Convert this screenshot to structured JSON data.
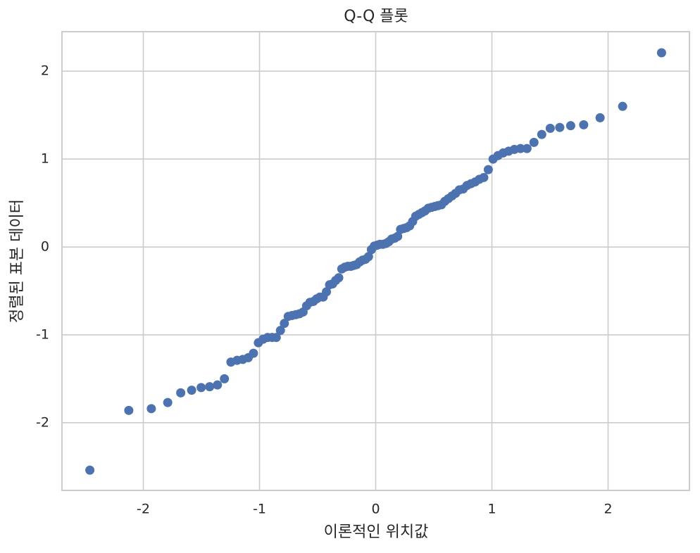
{
  "chart_data": {
    "type": "scatter",
    "title": "Q-Q 플롯",
    "x_label": "이론적인 위치값",
    "y_label": "정렬된 표본 데이터",
    "color": "#4c72b0",
    "grid": true,
    "xlim": [
      -2.7,
      2.7
    ],
    "ylim": [
      -2.77,
      2.45
    ],
    "xticks": [
      -2,
      -1,
      0,
      1,
      2
    ],
    "yticks": [
      -2,
      -1,
      0,
      1,
      2
    ],
    "x": [
      -2.46,
      -2.125,
      -1.931,
      -1.79,
      -1.678,
      -1.584,
      -1.502,
      -1.429,
      -1.362,
      -1.302,
      -1.246,
      -1.193,
      -1.144,
      -1.097,
      -1.052,
      -1.01,
      -0.969,
      -0.93,
      -0.892,
      -0.856,
      -0.82,
      -0.786,
      -0.753,
      -0.72,
      -0.687,
      -0.656,
      -0.625,
      -0.595,
      -0.566,
      -0.536,
      -0.508,
      -0.48,
      -0.452,
      -0.424,
      -0.397,
      -0.371,
      -0.344,
      -0.318,
      -0.292,
      -0.266,
      -0.24,
      -0.214,
      -0.189,
      -0.164,
      -0.138,
      -0.113,
      -0.088,
      -0.062,
      -0.037,
      -0.012,
      0.012,
      0.037,
      0.062,
      0.088,
      0.113,
      0.138,
      0.164,
      0.189,
      0.214,
      0.24,
      0.266,
      0.292,
      0.318,
      0.344,
      0.371,
      0.397,
      0.424,
      0.452,
      0.48,
      0.508,
      0.536,
      0.566,
      0.595,
      0.625,
      0.656,
      0.687,
      0.72,
      0.753,
      0.786,
      0.82,
      0.856,
      0.892,
      0.93,
      0.969,
      1.01,
      1.052,
      1.097,
      1.144,
      1.193,
      1.246,
      1.302,
      1.362,
      1.429,
      1.502,
      1.584,
      1.678,
      1.79,
      1.931,
      2.125,
      2.46
    ],
    "values": [
      -2.54,
      -1.86,
      -1.84,
      -1.77,
      -1.66,
      -1.63,
      -1.6,
      -1.59,
      -1.57,
      -1.5,
      -1.31,
      -1.29,
      -1.28,
      -1.26,
      -1.21,
      -1.09,
      -1.05,
      -1.03,
      -1.03,
      -1.03,
      -0.95,
      -0.87,
      -0.79,
      -0.78,
      -0.77,
      -0.76,
      -0.74,
      -0.67,
      -0.63,
      -0.62,
      -0.59,
      -0.57,
      -0.57,
      -0.51,
      -0.43,
      -0.42,
      -0.38,
      -0.35,
      -0.25,
      -0.23,
      -0.22,
      -0.22,
      -0.21,
      -0.2,
      -0.17,
      -0.15,
      -0.14,
      -0.11,
      -0.03,
      0.01,
      0.02,
      0.03,
      0.03,
      0.04,
      0.06,
      0.09,
      0.1,
      0.12,
      0.2,
      0.21,
      0.22,
      0.24,
      0.29,
      0.35,
      0.37,
      0.39,
      0.41,
      0.44,
      0.45,
      0.46,
      0.47,
      0.48,
      0.52,
      0.55,
      0.58,
      0.61,
      0.65,
      0.66,
      0.7,
      0.72,
      0.74,
      0.77,
      0.79,
      0.88,
      1.0,
      1.04,
      1.07,
      1.09,
      1.11,
      1.12,
      1.12,
      1.19,
      1.28,
      1.35,
      1.36,
      1.38,
      1.39,
      1.47,
      1.6,
      2.21
    ]
  }
}
